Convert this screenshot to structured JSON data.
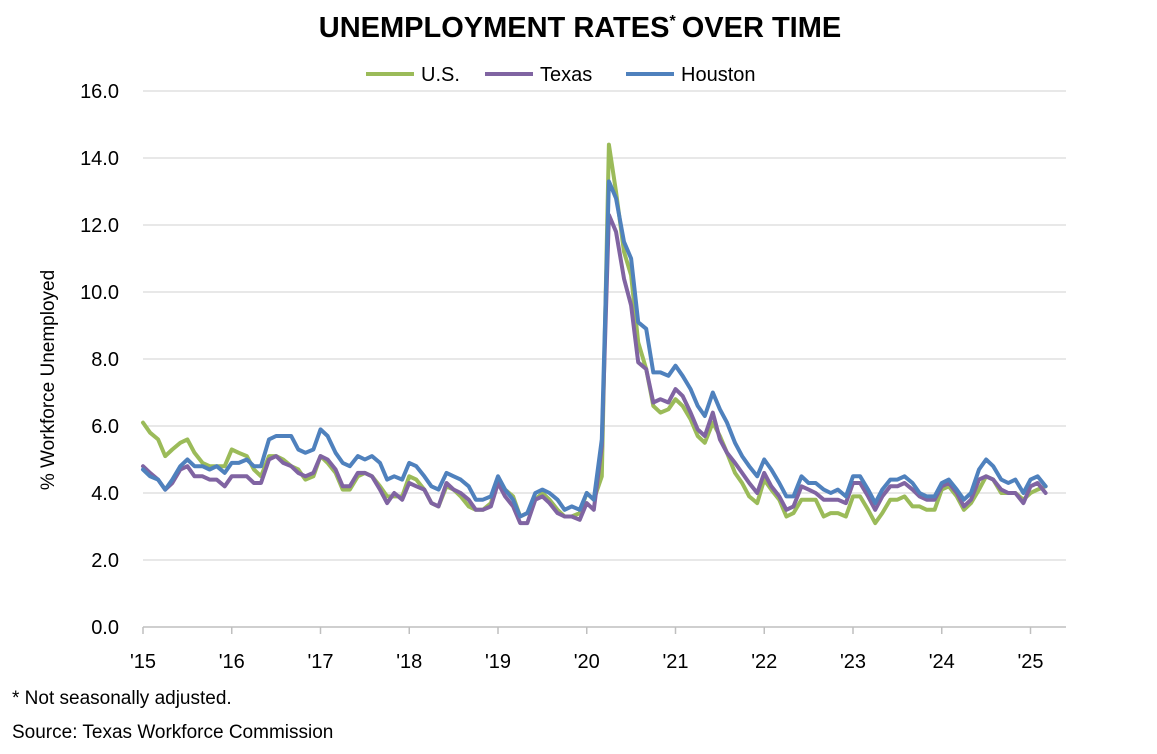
{
  "chart_data": {
    "type": "line",
    "title": "UNEMPLOYMENT RATES",
    "title_superscript": "*",
    "title_suffix": "OVER TIME",
    "ylabel": "% Workforce Unemployed",
    "xlabel": "",
    "ylim": [
      0,
      16
    ],
    "yticks": [
      "0.0",
      "2.0",
      "4.0",
      "6.0",
      "8.0",
      "10.0",
      "12.0",
      "14.0",
      "16.0"
    ],
    "ytick_values": [
      0,
      2,
      4,
      6,
      8,
      10,
      12,
      14,
      16
    ],
    "xticks": [
      "'15",
      "'16",
      "'17",
      "'18",
      "'19",
      "'20",
      "'21",
      "'22",
      "'23",
      "'24",
      "'25"
    ],
    "xtick_values": [
      2015,
      2016,
      2017,
      2018,
      2019,
      2020,
      2021,
      2022,
      2023,
      2024,
      2025
    ],
    "xlim": [
      2015,
      2025.4
    ],
    "grid": true,
    "legend_position": "top-center",
    "x": [
      2015.0,
      2015.08,
      2015.17,
      2015.25,
      2015.33,
      2015.42,
      2015.5,
      2015.58,
      2015.67,
      2015.75,
      2015.83,
      2015.92,
      2016.0,
      2016.08,
      2016.17,
      2016.25,
      2016.33,
      2016.42,
      2016.5,
      2016.58,
      2016.67,
      2016.75,
      2016.83,
      2016.92,
      2017.0,
      2017.08,
      2017.17,
      2017.25,
      2017.33,
      2017.42,
      2017.5,
      2017.58,
      2017.67,
      2017.75,
      2017.83,
      2017.92,
      2018.0,
      2018.08,
      2018.17,
      2018.25,
      2018.33,
      2018.42,
      2018.5,
      2018.58,
      2018.67,
      2018.75,
      2018.83,
      2018.92,
      2019.0,
      2019.08,
      2019.17,
      2019.25,
      2019.33,
      2019.42,
      2019.5,
      2019.58,
      2019.67,
      2019.75,
      2019.83,
      2019.92,
      2020.0,
      2020.08,
      2020.17,
      2020.25,
      2020.33,
      2020.42,
      2020.5,
      2020.58,
      2020.67,
      2020.75,
      2020.83,
      2020.92,
      2021.0,
      2021.08,
      2021.17,
      2021.25,
      2021.33,
      2021.42,
      2021.5,
      2021.58,
      2021.67,
      2021.75,
      2021.83,
      2021.92,
      2022.0,
      2022.08,
      2022.17,
      2022.25,
      2022.33,
      2022.42,
      2022.5,
      2022.58,
      2022.67,
      2022.75,
      2022.83,
      2022.92,
      2023.0,
      2023.08,
      2023.17,
      2023.25,
      2023.33,
      2023.42,
      2023.5,
      2023.58,
      2023.67,
      2023.75,
      2023.83,
      2023.92,
      2024.0,
      2024.08,
      2024.17,
      2024.25,
      2024.33,
      2024.42,
      2024.5,
      2024.58,
      2024.67,
      2024.75,
      2024.83,
      2024.92,
      2025.0,
      2025.08,
      2025.17
    ],
    "series": [
      {
        "name": "U.S.",
        "color": "#9bbb59",
        "values": [
          6.1,
          5.8,
          5.6,
          5.1,
          5.3,
          5.5,
          5.6,
          5.2,
          4.9,
          4.8,
          4.8,
          4.8,
          5.3,
          5.2,
          5.1,
          4.7,
          4.5,
          5.1,
          5.1,
          5.0,
          4.8,
          4.7,
          4.4,
          4.5,
          5.1,
          4.9,
          4.6,
          4.1,
          4.1,
          4.5,
          4.6,
          4.5,
          4.2,
          3.9,
          3.9,
          3.9,
          4.5,
          4.4,
          4.1,
          3.7,
          3.6,
          4.2,
          4.1,
          3.9,
          3.6,
          3.5,
          3.5,
          3.7,
          4.4,
          4.1,
          3.9,
          3.3,
          3.4,
          3.8,
          4.0,
          3.8,
          3.5,
          3.3,
          3.3,
          3.4,
          4.0,
          3.8,
          4.5,
          14.4,
          13.0,
          11.2,
          10.5,
          8.5,
          7.7,
          6.6,
          6.4,
          6.5,
          6.8,
          6.6,
          6.2,
          5.7,
          5.5,
          6.1,
          5.7,
          5.2,
          4.6,
          4.3,
          3.9,
          3.7,
          4.4,
          4.1,
          3.8,
          3.3,
          3.4,
          3.8,
          3.8,
          3.8,
          3.3,
          3.4,
          3.4,
          3.3,
          3.9,
          3.9,
          3.5,
          3.1,
          3.4,
          3.8,
          3.8,
          3.9,
          3.6,
          3.6,
          3.5,
          3.5,
          4.1,
          4.2,
          3.9,
          3.5,
          3.7,
          4.1,
          4.5,
          4.4,
          4.0,
          4.0,
          4.0,
          3.8,
          4.0,
          4.1,
          4.2
        ]
      },
      {
        "name": "Texas",
        "color": "#8064a2",
        "values": [
          4.8,
          4.6,
          4.4,
          4.1,
          4.3,
          4.7,
          4.8,
          4.5,
          4.5,
          4.4,
          4.4,
          4.2,
          4.5,
          4.5,
          4.5,
          4.3,
          4.3,
          5.0,
          5.1,
          4.9,
          4.8,
          4.6,
          4.5,
          4.6,
          5.1,
          5.0,
          4.7,
          4.2,
          4.2,
          4.6,
          4.6,
          4.5,
          4.1,
          3.7,
          4.0,
          3.8,
          4.3,
          4.2,
          4.1,
          3.7,
          3.6,
          4.3,
          4.1,
          4.0,
          3.8,
          3.5,
          3.5,
          3.6,
          4.3,
          3.9,
          3.6,
          3.1,
          3.1,
          3.8,
          3.9,
          3.7,
          3.4,
          3.3,
          3.3,
          3.2,
          3.7,
          3.5,
          5.4,
          12.3,
          11.8,
          10.4,
          9.6,
          7.9,
          7.7,
          6.7,
          6.8,
          6.7,
          7.1,
          6.9,
          6.4,
          5.9,
          5.7,
          6.4,
          5.6,
          5.2,
          4.9,
          4.6,
          4.3,
          4.0,
          4.6,
          4.2,
          3.9,
          3.5,
          3.6,
          4.2,
          4.1,
          4.0,
          3.8,
          3.8,
          3.8,
          3.7,
          4.3,
          4.3,
          3.9,
          3.5,
          3.9,
          4.2,
          4.2,
          4.3,
          4.1,
          3.9,
          3.8,
          3.8,
          4.2,
          4.3,
          4.0,
          3.6,
          3.8,
          4.4,
          4.5,
          4.4,
          4.1,
          4.0,
          4.0,
          3.7,
          4.2,
          4.3,
          4.0
        ]
      },
      {
        "name": "Houston",
        "color": "#4f81bd",
        "values": [
          4.7,
          4.5,
          4.4,
          4.1,
          4.4,
          4.8,
          5.0,
          4.8,
          4.8,
          4.7,
          4.8,
          4.6,
          4.9,
          4.9,
          5.0,
          4.8,
          4.8,
          5.6,
          5.7,
          5.7,
          5.7,
          5.3,
          5.2,
          5.3,
          5.9,
          5.7,
          5.2,
          4.9,
          4.8,
          5.1,
          5.0,
          5.1,
          4.9,
          4.4,
          4.5,
          4.4,
          4.9,
          4.8,
          4.5,
          4.2,
          4.1,
          4.6,
          4.5,
          4.4,
          4.2,
          3.8,
          3.8,
          3.9,
          4.5,
          4.1,
          3.8,
          3.3,
          3.4,
          4.0,
          4.1,
          4.0,
          3.8,
          3.5,
          3.6,
          3.5,
          4.0,
          3.8,
          5.6,
          13.3,
          12.8,
          11.5,
          11.0,
          9.1,
          8.9,
          7.6,
          7.6,
          7.5,
          7.8,
          7.5,
          7.1,
          6.6,
          6.3,
          7.0,
          6.5,
          6.1,
          5.5,
          5.1,
          4.8,
          4.5,
          5.0,
          4.7,
          4.3,
          3.9,
          3.9,
          4.5,
          4.3,
          4.3,
          4.1,
          4.0,
          4.1,
          3.9,
          4.5,
          4.5,
          4.1,
          3.7,
          4.1,
          4.4,
          4.4,
          4.5,
          4.3,
          4.0,
          3.9,
          3.9,
          4.3,
          4.4,
          4.1,
          3.8,
          4.0,
          4.7,
          5.0,
          4.8,
          4.4,
          4.3,
          4.4,
          4.0,
          4.4,
          4.5,
          4.2
        ]
      }
    ]
  },
  "footnotes": {
    "note": "* Not seasonally adjusted.",
    "source": "Source: Texas Workforce Commission"
  }
}
